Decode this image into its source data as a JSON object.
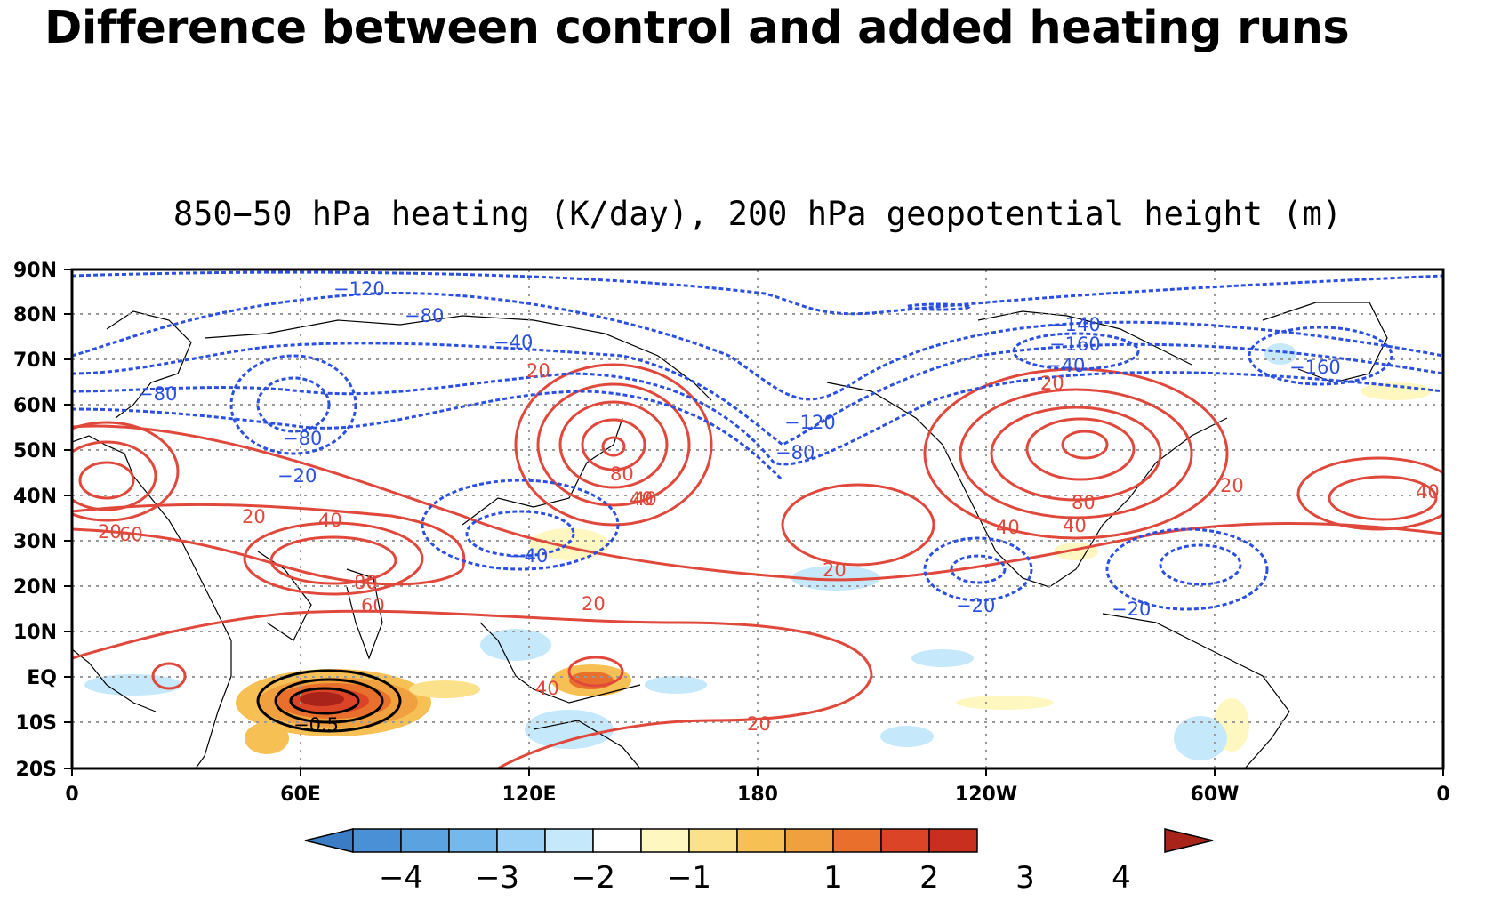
{
  "slide_title": "Difference between control and added heating runs",
  "map": {
    "subtitle": "850−50 hPa heating (K/day), 200 hPa geopotential height (m)",
    "lat_labels": [
      "90N",
      "80N",
      "70N",
      "60N",
      "50N",
      "40N",
      "30N",
      "20N",
      "10N",
      "EQ",
      "10S",
      "20S"
    ],
    "lon_labels": [
      "0",
      "60E",
      "120E",
      "180",
      "120W",
      "60W",
      "0"
    ],
    "contour_labels_red": [
      "20",
      "40",
      "60",
      "80",
      "20",
      "40",
      "20",
      "40",
      "60",
      "80",
      "20",
      "40",
      "20",
      "80",
      "40",
      "20",
      "20",
      "40",
      "40",
      "20"
    ],
    "contour_labels_blue": [
      "−120",
      "−80",
      "−40",
      "−80",
      "−80",
      "−20",
      "−40",
      "−120",
      "−80",
      "−140",
      "−160",
      "−40",
      "−160",
      "−20",
      "−20"
    ],
    "contour_labels_black": [
      "−0.5"
    ],
    "colors": {
      "positive_height": "#e0483c",
      "negative_height": "#2b4fe0",
      "heating_contour": "#000000",
      "coastline": "#000000",
      "grid": "#999999"
    }
  },
  "colorbar": {
    "tick_labels": [
      "−4",
      "−3",
      "−2",
      "−1",
      "1",
      "2",
      "3",
      "4"
    ],
    "colors": [
      "#3a7dc4",
      "#4a90d6",
      "#5aa3e0",
      "#74b8ec",
      "#9ad0f5",
      "#c5e8fb",
      "#ffffff",
      "#fff7c0",
      "#fbe18a",
      "#f6c055",
      "#f0a03e",
      "#e8702c",
      "#db4426",
      "#c92f1e",
      "#a8241a"
    ]
  }
}
